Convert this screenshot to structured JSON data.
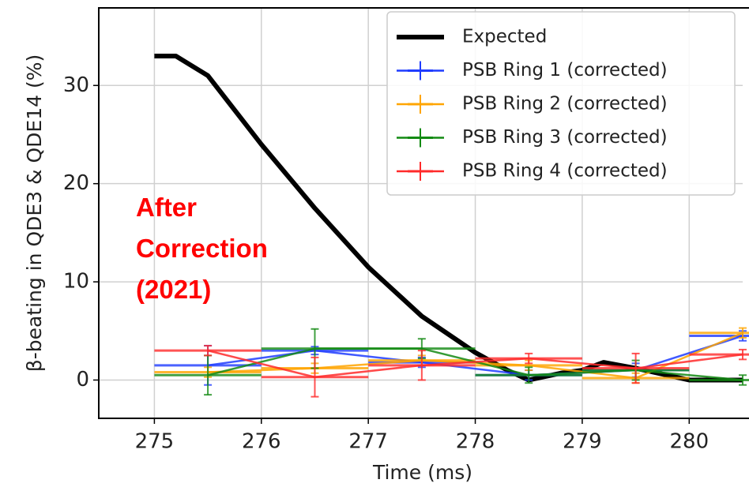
{
  "chart_data": {
    "type": "line",
    "xlabel": "Time (ms)",
    "ylabel": "β-beating in QDE3 & QDE14 (%)",
    "annotation": "After\nCorrection\n(2021)",
    "annotation_color": "#ff0000",
    "xlim": [
      274.48,
      280.5
    ],
    "ylim": [
      -3.9,
      37.9
    ],
    "xticks": [
      275,
      276,
      277,
      278,
      279,
      280
    ],
    "yticks": [
      0,
      10,
      20,
      30
    ],
    "grid": true,
    "legend": "upper right",
    "series": [
      {
        "name": "Expected",
        "color": "#000000",
        "x": [
          275,
          275.2,
          275.5,
          276,
          276.5,
          277,
          277.5,
          278,
          278.3,
          278.5,
          278.8,
          279,
          279.2,
          279.5,
          280,
          280.5
        ],
        "values": [
          33,
          33,
          31,
          24,
          17.5,
          11.5,
          6.5,
          2.8,
          1,
          0,
          0.7,
          1,
          1.8,
          1.2,
          0,
          0
        ]
      },
      {
        "name": "PSB Ring 1 (corrected)",
        "color": "#1f3cff",
        "x": [
          275.5,
          276.5,
          277.5,
          278.5,
          279.5,
          280.5
        ],
        "values": [
          1.5,
          3.0,
          1.8,
          0.5,
          1.0,
          4.5
        ],
        "yerr": [
          2.0,
          0.4,
          0.5,
          0.5,
          0.7,
          0.5
        ],
        "xerr": [
          0.5,
          0.5,
          0.5,
          0.5,
          0.5,
          0.5
        ]
      },
      {
        "name": "PSB Ring 2 (corrected)",
        "color": "#ffa500",
        "x": [
          275.5,
          276.5,
          277.5,
          278.5,
          279.5,
          280.5
        ],
        "values": [
          0.8,
          1.2,
          2.0,
          1.5,
          0.2,
          4.8
        ],
        "yerr": [
          0.5,
          0.5,
          0.5,
          0.5,
          0.5,
          0.5
        ],
        "xerr": [
          0.5,
          0.5,
          0.5,
          0.5,
          0.5,
          0.5
        ]
      },
      {
        "name": "PSB Ring 3 (corrected)",
        "color": "#138a13",
        "x": [
          275.5,
          276.5,
          277.5,
          278.5,
          279.5,
          280.5
        ],
        "values": [
          0.5,
          3.2,
          3.2,
          0.5,
          1.0,
          0
        ],
        "yerr": [
          2.0,
          2.0,
          1.0,
          0.8,
          1.0,
          0.5
        ],
        "xerr": [
          0.5,
          0.5,
          0.5,
          0.5,
          0.5,
          0.5
        ]
      },
      {
        "name": "PSB Ring 4 (corrected)",
        "color": "#ff2a2a",
        "x": [
          275.5,
          276.5,
          277.5,
          278.5,
          279.5,
          280.5
        ],
        "values": [
          3.0,
          0.3,
          1.5,
          2.2,
          1.2,
          2.6
        ],
        "yerr": [
          0.5,
          2.0,
          1.5,
          0.5,
          1.5,
          0.5
        ],
        "xerr": [
          0.5,
          0.5,
          0.5,
          0.5,
          0.5,
          0.5
        ]
      }
    ]
  }
}
